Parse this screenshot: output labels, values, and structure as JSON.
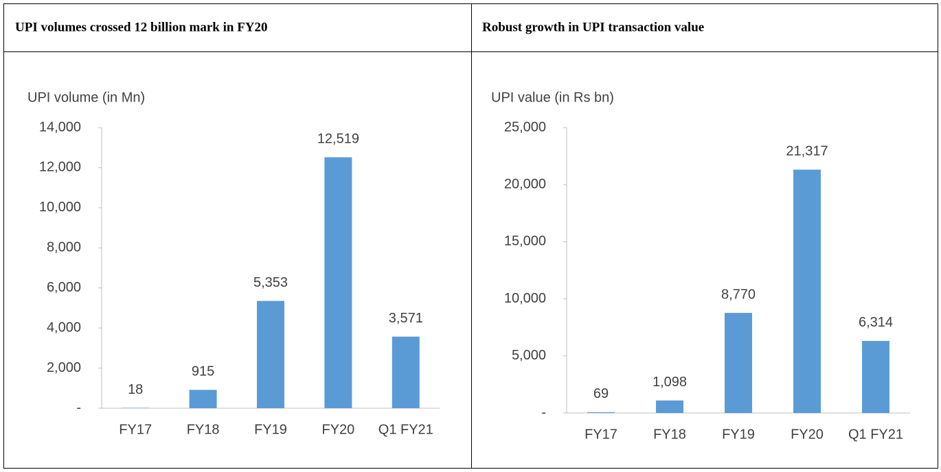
{
  "table": {
    "headers": [
      "UPI volumes crossed 12 billion mark in FY20",
      "Robust growth in UPI transaction value"
    ]
  },
  "chart_data": [
    {
      "type": "bar",
      "title": "UPI volume (in Mn)",
      "categories": [
        "FY17",
        "FY18",
        "FY19",
        "FY20",
        "Q1 FY21"
      ],
      "values": [
        18,
        915,
        5353,
        12519,
        3571
      ],
      "value_labels": [
        "18",
        "915",
        "5,353",
        "12,519",
        "3,571"
      ],
      "color": "#5b9bd5",
      "ylim": [
        0,
        14000
      ],
      "yticks": [
        {
          "value": 0,
          "label": "-"
        },
        {
          "value": 2000,
          "label": "2,000"
        },
        {
          "value": 4000,
          "label": "4,000"
        },
        {
          "value": 6000,
          "label": "6,000"
        },
        {
          "value": 8000,
          "label": "8,000"
        },
        {
          "value": 10000,
          "label": "10,000"
        },
        {
          "value": 12000,
          "label": "12,000"
        },
        {
          "value": 14000,
          "label": "14,000"
        }
      ]
    },
    {
      "type": "bar",
      "title": "UPI value (in Rs bn)",
      "categories": [
        "FY17",
        "FY18",
        "FY19",
        "FY20",
        "Q1 FY21"
      ],
      "values": [
        69,
        1098,
        8770,
        21317,
        6314
      ],
      "value_labels": [
        "69",
        "1,098",
        "8,770",
        "21,317",
        "6,314"
      ],
      "color": "#5b9bd5",
      "ylim": [
        0,
        25000
      ],
      "yticks": [
        {
          "value": 0,
          "label": "-"
        },
        {
          "value": 5000,
          "label": "5,000"
        },
        {
          "value": 10000,
          "label": "10,000"
        },
        {
          "value": 15000,
          "label": "15,000"
        },
        {
          "value": 20000,
          "label": "20,000"
        },
        {
          "value": 25000,
          "label": "25,000"
        }
      ]
    }
  ]
}
